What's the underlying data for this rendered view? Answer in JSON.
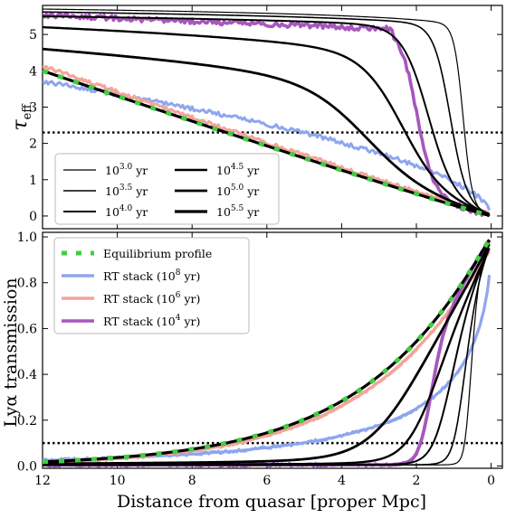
{
  "chart_data": [
    {
      "type": "line",
      "panel": "top",
      "ylabel_main": "τ",
      "ylabel_sub": "eff",
      "xlim": [
        12,
        -0.3
      ],
      "ylim": [
        -0.35,
        5.8
      ],
      "yticks": [
        0,
        1,
        2,
        3,
        4,
        5
      ],
      "xticks": [
        12,
        10,
        8,
        6,
        4,
        2,
        0
      ],
      "threshold": 2.3,
      "legend_position": "lower-left",
      "legend": [
        {
          "base": "10",
          "exp": "3.0",
          "unit": "yr",
          "width": 1.2
        },
        {
          "base": "10",
          "exp": "3.5",
          "unit": "yr",
          "width": 1.6
        },
        {
          "base": "10",
          "exp": "4.0",
          "unit": "yr",
          "width": 2.0
        },
        {
          "base": "10",
          "exp": "4.5",
          "unit": "yr",
          "width": 2.4
        },
        {
          "base": "10",
          "exp": "5.0",
          "unit": "yr",
          "width": 2.8
        },
        {
          "base": "10",
          "exp": "5.5",
          "unit": "yr",
          "width": 3.2
        }
      ]
    },
    {
      "type": "line",
      "panel": "bottom",
      "ylabel": "Lyα transmission",
      "xlabel": "Distance from quasar [proper Mpc]",
      "xlim": [
        12,
        -0.3
      ],
      "ylim": [
        -0.01,
        1.02
      ],
      "yticks": [
        0.0,
        0.2,
        0.4,
        0.6,
        0.8,
        1.0
      ],
      "yticklabels": [
        "0.0",
        "0.2",
        "0.4",
        "0.6",
        "0.8",
        "1.0"
      ],
      "xticks": [
        12,
        10,
        8,
        6,
        4,
        2,
        0
      ],
      "threshold": 0.1,
      "legend_position": "upper-left",
      "legend": [
        {
          "label": "Equilibrium profile",
          "sup": "",
          "tail": "",
          "color": "#44cc44"
        },
        {
          "label": "RT stack (10",
          "sup": "8",
          "tail": " yr)",
          "color": "#8fa6ee"
        },
        {
          "label": "RT stack (10",
          "sup": "6",
          "tail": " yr)",
          "color": "#f4a49a"
        },
        {
          "label": "RT stack (10",
          "sup": "4",
          "tail": " yr)",
          "color": "#a757bd"
        }
      ]
    }
  ],
  "colors": {
    "equilibrium": "#44cc44",
    "rt8": "#8fa6ee",
    "rt6": "#f4a49a",
    "rt4": "#a757bd",
    "model": "#000000"
  }
}
